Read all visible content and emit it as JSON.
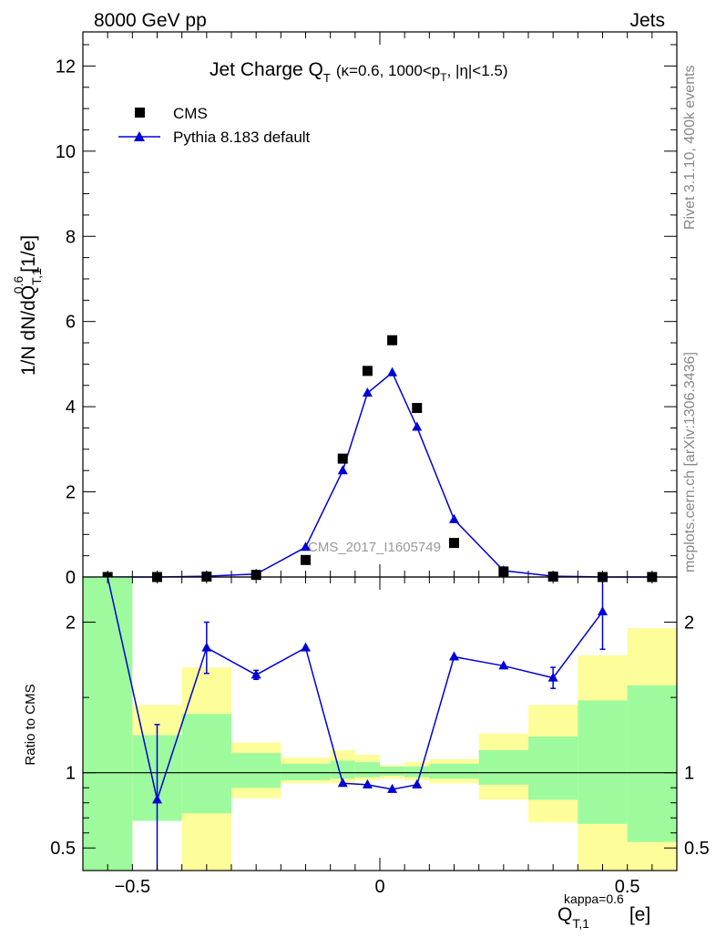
{
  "header": {
    "left": "8000 GeV pp",
    "right": "Jets"
  },
  "side_labels": {
    "rivet": "Rivet 3.1.10,  400k events",
    "mcplots": "mcplots.cern.ch [arXiv:1306.3436]"
  },
  "watermark": "CMS_2017_I1605749",
  "colors": {
    "mc": "#0000d6",
    "band_inner": "#9dfb9d",
    "band_outer": "#fdfd9a",
    "data": "#000000"
  },
  "chart_data": [
    {
      "type": "scatter",
      "title_main": "Jet Charge Q",
      "title_sub": "T",
      "title_rest": "(κ=0.6, 1000<p",
      "title_rest_sub": "T",
      "title_end": ", |η|<1.5)",
      "ylabel_main": "1/N dN/dQ",
      "ylabel_sup": "0.6",
      "ylabel_sub": "T,1",
      "ylabel_unit": "[1/e]",
      "ylim": [
        0,
        12.8
      ],
      "xlim": [
        -0.6,
        0.6
      ],
      "yticks": [
        0,
        2,
        4,
        6,
        8,
        10,
        12
      ],
      "legend": {
        "data": "CMS",
        "mc": "Pythia 8.183 default"
      },
      "data_points": {
        "x": [
          -0.55,
          -0.45,
          -0.35,
          -0.25,
          -0.15,
          -0.075,
          -0.025,
          0.025,
          0.075,
          0.15,
          0.25,
          0.35,
          0.45,
          0.55
        ],
        "y": [
          0.0,
          0.0,
          0.01,
          0.05,
          0.4,
          2.78,
          4.84,
          5.56,
          3.97,
          0.8,
          0.13,
          0.01,
          0.0,
          0.0
        ]
      },
      "mc_points": {
        "x": [
          -0.55,
          -0.45,
          -0.35,
          -0.25,
          -0.15,
          -0.075,
          -0.025,
          0.025,
          0.075,
          0.15,
          0.25,
          0.35,
          0.45,
          0.55
        ],
        "y": [
          0.0,
          0.0,
          0.02,
          0.07,
          0.7,
          2.5,
          4.32,
          4.8,
          3.52,
          1.35,
          0.15,
          0.02,
          0.0,
          0.0
        ]
      }
    },
    {
      "type": "line",
      "ylabel": "Ratio to CMS",
      "xlabel_main": "Q",
      "xlabel_sup": "kappa=0.6",
      "xlabel_sub": "T,1",
      "xlabel_unit": "[e]",
      "ylim": [
        0.35,
        2.3
      ],
      "xlim": [
        -0.6,
        0.6
      ],
      "yticks": [
        0.5,
        1,
        2
      ],
      "ytick_labels": [
        "0.5",
        "1",
        "2"
      ],
      "xticks": [
        -0.5,
        0,
        0.5
      ],
      "xtick_labels": [
        "−0.5",
        "0",
        "0.5"
      ],
      "bins": [
        {
          "lo": -0.6,
          "hi": -0.5,
          "outer": [
            0.35,
            2.3
          ],
          "inner": [
            0.35,
            2.3
          ]
        },
        {
          "lo": -0.5,
          "hi": -0.4,
          "outer": [
            0.68,
            1.45
          ],
          "inner": [
            0.68,
            1.25
          ]
        },
        {
          "lo": -0.4,
          "hi": -0.3,
          "outer": [
            0.35,
            1.7
          ],
          "inner": [
            0.73,
            1.39
          ]
        },
        {
          "lo": -0.3,
          "hi": -0.2,
          "outer": [
            0.83,
            1.2
          ],
          "inner": [
            0.9,
            1.13
          ]
        },
        {
          "lo": -0.2,
          "hi": -0.1,
          "outer": [
            0.93,
            1.1
          ],
          "inner": [
            0.95,
            1.06
          ]
        },
        {
          "lo": -0.1,
          "hi": -0.05,
          "outer": [
            0.93,
            1.15
          ],
          "inner": [
            0.96,
            1.08
          ]
        },
        {
          "lo": -0.05,
          "hi": 0.0,
          "outer": [
            0.95,
            1.12
          ],
          "inner": [
            0.97,
            1.07
          ]
        },
        {
          "lo": 0.0,
          "hi": 0.05,
          "outer": [
            0.96,
            1.05
          ],
          "inner": [
            0.98,
            1.04
          ]
        },
        {
          "lo": 0.05,
          "hi": 0.1,
          "outer": [
            0.95,
            1.07
          ],
          "inner": [
            0.97,
            1.04
          ]
        },
        {
          "lo": 0.1,
          "hi": 0.2,
          "outer": [
            0.93,
            1.09
          ],
          "inner": [
            0.96,
            1.06
          ]
        },
        {
          "lo": 0.2,
          "hi": 0.3,
          "outer": [
            0.82,
            1.26
          ],
          "inner": [
            0.92,
            1.15
          ]
        },
        {
          "lo": 0.3,
          "hi": 0.4,
          "outer": [
            0.67,
            1.45
          ],
          "inner": [
            0.82,
            1.24
          ]
        },
        {
          "lo": 0.4,
          "hi": 0.5,
          "outer": [
            0.35,
            1.78
          ],
          "inner": [
            0.66,
            1.48
          ]
        },
        {
          "lo": 0.5,
          "hi": 0.6,
          "outer": [
            0.35,
            1.96
          ],
          "inner": [
            0.54,
            1.58
          ]
        }
      ],
      "ratio_points": {
        "x": [
          -0.45,
          -0.35,
          -0.25,
          -0.15,
          -0.075,
          -0.025,
          0.025,
          0.075,
          0.15,
          0.25,
          0.35,
          0.45
        ],
        "y": [
          0.82,
          1.83,
          1.65,
          1.83,
          0.93,
          0.92,
          0.89,
          0.92,
          1.77,
          1.71,
          1.63,
          2.07
        ],
        "err": [
          0.5,
          0.17,
          0.03,
          0.0,
          0.0,
          0.0,
          0.0,
          0.0,
          0.0,
          0.0,
          0.07,
          0.25
        ]
      }
    }
  ]
}
